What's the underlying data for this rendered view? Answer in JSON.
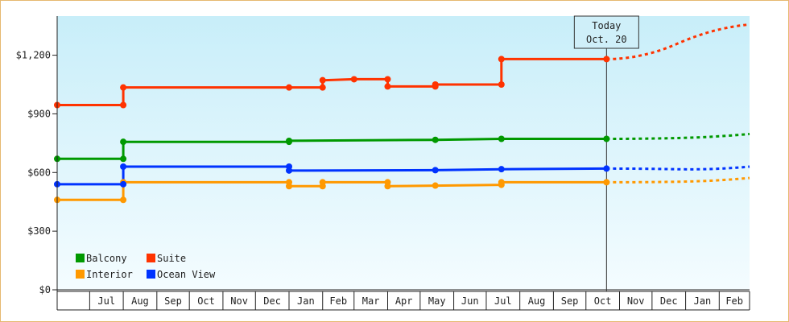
{
  "chart_data": {
    "type": "line",
    "title": "",
    "xlabel": "",
    "ylabel": "",
    "ylim": [
      0,
      1400
    ],
    "y_ticks": [
      {
        "value": 0,
        "label": "$0"
      },
      {
        "value": 300,
        "label": "$300"
      },
      {
        "value": 600,
        "label": "$600"
      },
      {
        "value": 900,
        "label": "$900"
      },
      {
        "value": 1200,
        "label": "$1,200"
      }
    ],
    "x_domain": [
      "2019-06-01",
      "2020-03-01"
    ],
    "x_months": [
      {
        "start": "2019-07-01",
        "label": "Jul"
      },
      {
        "start": "2019-08-01",
        "label": "Aug"
      },
      {
        "start": "2019-09-01",
        "label": "Sep"
      },
      {
        "start": "2019-10-01",
        "label": "Oct"
      },
      {
        "start": "2019-11-01",
        "label": "Nov"
      },
      {
        "start": "2019-12-01",
        "label": "Dec"
      },
      {
        "start": "2020-01-01",
        "label": "Jan"
      },
      {
        "start": "2020-02-01",
        "label": "Feb"
      },
      {
        "start": "2020-03-01",
        "label": "Mar"
      },
      {
        "start": "2020-04-01",
        "label": "Apr"
      },
      {
        "start": "2020-05-01",
        "label": "May"
      },
      {
        "start": "2020-06-01",
        "label": "Jun"
      },
      {
        "start": "2020-07-01",
        "label": "Jul"
      },
      {
        "start": "2020-08-01",
        "label": "Aug"
      },
      {
        "start": "2020-09-01",
        "label": "Sep"
      },
      {
        "start": "2020-10-01",
        "label": "Oct"
      },
      {
        "start": "2020-11-01",
        "label": "Nov"
      },
      {
        "start": "2020-12-01",
        "label": "Dec"
      },
      {
        "start": "2021-01-01",
        "label": "Jan"
      },
      {
        "start": "2021-02-01",
        "label": "Feb"
      }
    ],
    "x_end": "2021-03-01",
    "grid": false,
    "legend": "bottom-left",
    "today": {
      "date": "2020-10-20",
      "label": "Today",
      "date_label": "Oct. 20"
    },
    "series": [
      {
        "name": "Balcony",
        "color": "#009900",
        "points": [
          {
            "date": "2019-06-01",
            "value": 670
          },
          {
            "date": "2019-08-01",
            "value": 670
          },
          {
            "date": "2019-08-01",
            "value": 757
          },
          {
            "date": "2020-01-01",
            "value": 757
          },
          {
            "date": "2020-01-01",
            "value": 762
          },
          {
            "date": "2020-05-15",
            "value": 767
          },
          {
            "date": "2020-07-15",
            "value": 772
          },
          {
            "date": "2020-10-20",
            "value": 772
          }
        ],
        "forecast": [
          {
            "date": "2020-10-20",
            "value": 772
          },
          {
            "date": "2021-03-01",
            "value": 797
          }
        ]
      },
      {
        "name": "Suite",
        "color": "#ff3300",
        "points": [
          {
            "date": "2019-06-01",
            "value": 945
          },
          {
            "date": "2019-08-01",
            "value": 945
          },
          {
            "date": "2019-08-01",
            "value": 1035
          },
          {
            "date": "2020-01-01",
            "value": 1035
          },
          {
            "date": "2020-02-01",
            "value": 1035
          },
          {
            "date": "2020-02-01",
            "value": 1072
          },
          {
            "date": "2020-03-01",
            "value": 1077
          },
          {
            "date": "2020-04-01",
            "value": 1077
          },
          {
            "date": "2020-04-01",
            "value": 1040
          },
          {
            "date": "2020-05-15",
            "value": 1040
          },
          {
            "date": "2020-05-15",
            "value": 1050
          },
          {
            "date": "2020-07-15",
            "value": 1050
          },
          {
            "date": "2020-07-15",
            "value": 1180
          },
          {
            "date": "2020-10-20",
            "value": 1180
          }
        ],
        "forecast": [
          {
            "date": "2020-10-20",
            "value": 1180
          },
          {
            "date": "2021-03-01",
            "value": 1357
          }
        ]
      },
      {
        "name": "Interior",
        "color": "#ff9900",
        "points": [
          {
            "date": "2019-06-01",
            "value": 460
          },
          {
            "date": "2019-08-01",
            "value": 460
          },
          {
            "date": "2019-08-01",
            "value": 550
          },
          {
            "date": "2020-01-01",
            "value": 550
          },
          {
            "date": "2020-01-01",
            "value": 530
          },
          {
            "date": "2020-02-01",
            "value": 530
          },
          {
            "date": "2020-02-01",
            "value": 550
          },
          {
            "date": "2020-04-01",
            "value": 550
          },
          {
            "date": "2020-04-01",
            "value": 530
          },
          {
            "date": "2020-05-15",
            "value": 533
          },
          {
            "date": "2020-07-15",
            "value": 537
          },
          {
            "date": "2020-07-15",
            "value": 550
          },
          {
            "date": "2020-10-20",
            "value": 550
          }
        ],
        "forecast": [
          {
            "date": "2020-10-20",
            "value": 550
          },
          {
            "date": "2021-03-01",
            "value": 572
          }
        ]
      },
      {
        "name": "Ocean View",
        "color": "#0033ff",
        "points": [
          {
            "date": "2019-06-01",
            "value": 540
          },
          {
            "date": "2019-08-01",
            "value": 540
          },
          {
            "date": "2019-08-01",
            "value": 630
          },
          {
            "date": "2020-01-01",
            "value": 630
          },
          {
            "date": "2020-01-01",
            "value": 610
          },
          {
            "date": "2020-05-15",
            "value": 612
          },
          {
            "date": "2020-07-15",
            "value": 617
          },
          {
            "date": "2020-10-20",
            "value": 620
          }
        ],
        "forecast": [
          {
            "date": "2020-10-20",
            "value": 620
          },
          {
            "date": "2021-03-01",
            "value": 630
          }
        ]
      }
    ],
    "markers": [
      {
        "series": "Balcony",
        "dates": [
          "2019-06-01",
          "2019-08-01",
          "2019-08-01",
          "2020-01-01",
          "2020-01-01",
          "2020-05-15",
          "2020-07-15",
          "2020-10-20"
        ],
        "values": [
          670,
          670,
          757,
          757,
          762,
          767,
          772,
          772
        ]
      },
      {
        "series": "Suite",
        "dates": [
          "2019-06-01",
          "2019-08-01",
          "2019-08-01",
          "2020-01-01",
          "2020-02-01",
          "2020-02-01",
          "2020-03-01",
          "2020-04-01",
          "2020-04-01",
          "2020-05-15",
          "2020-05-15",
          "2020-07-15",
          "2020-07-15",
          "2020-10-20"
        ],
        "values": [
          945,
          945,
          1035,
          1035,
          1035,
          1072,
          1077,
          1077,
          1040,
          1040,
          1050,
          1050,
          1180,
          1180
        ]
      },
      {
        "series": "Interior",
        "dates": [
          "2019-06-01",
          "2019-08-01",
          "2019-08-01",
          "2020-01-01",
          "2020-01-01",
          "2020-02-01",
          "2020-02-01",
          "2020-04-01",
          "2020-04-01",
          "2020-05-15",
          "2020-07-15",
          "2020-07-15",
          "2020-10-20"
        ],
        "values": [
          460,
          460,
          550,
          550,
          530,
          530,
          550,
          550,
          530,
          533,
          537,
          550,
          550
        ]
      },
      {
        "series": "Ocean View",
        "dates": [
          "2019-06-01",
          "2019-08-01",
          "2019-08-01",
          "2020-01-01",
          "2020-01-01",
          "2020-05-15",
          "2020-07-15",
          "2020-10-20"
        ],
        "values": [
          540,
          540,
          630,
          630,
          610,
          612,
          617,
          620
        ]
      }
    ],
    "legend_order": [
      "Balcony",
      "Suite",
      "Interior",
      "Ocean View"
    ],
    "colors": {
      "plot_top": "#c8eef9",
      "plot_bottom": "#f4fcff",
      "frame": "#e6b870",
      "axis": "#222222",
      "callout_bg": "#cfeff9"
    }
  }
}
